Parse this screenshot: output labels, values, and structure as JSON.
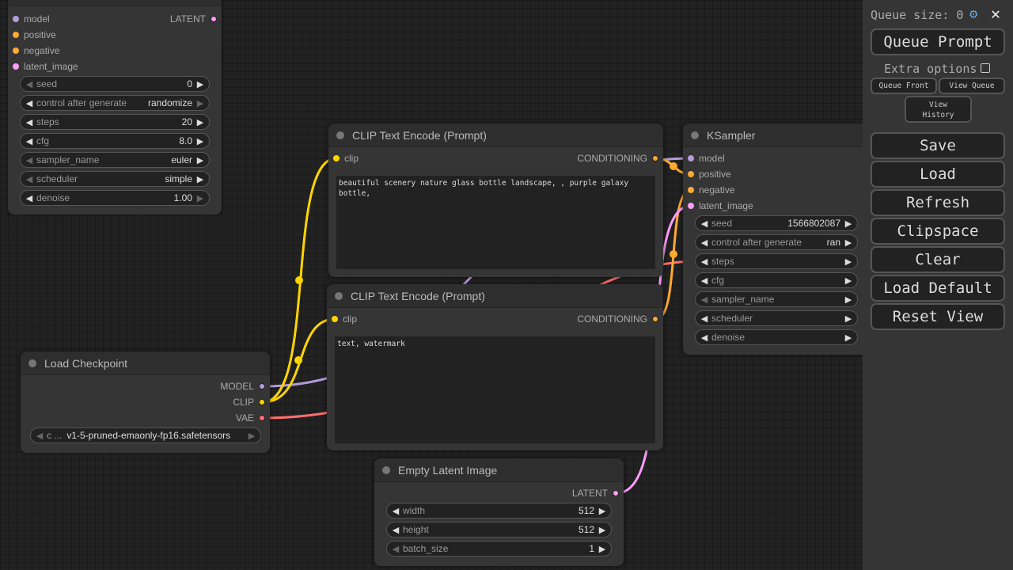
{
  "colors": {
    "model": "#b39ddb",
    "clip": "#ffd500",
    "conditioning": "#ffa931",
    "latent": "#ff9cf9",
    "vae": "#ff6e6e"
  },
  "ksampler_top": {
    "inputs": [
      "model",
      "positive",
      "negative",
      "latent_image"
    ],
    "output": "LATENT",
    "widgets": [
      {
        "label": "seed",
        "value": "0"
      },
      {
        "label": "control after generate",
        "value": "randomize"
      },
      {
        "label": "steps",
        "value": "20"
      },
      {
        "label": "cfg",
        "value": "8.0"
      },
      {
        "label": "sampler_name",
        "value": "euler"
      },
      {
        "label": "scheduler",
        "value": "simple"
      },
      {
        "label": "denoise",
        "value": "1.00"
      }
    ]
  },
  "clip1": {
    "title": "CLIP Text Encode (Prompt)",
    "input": "clip",
    "output": "CONDITIONING",
    "text": "beautiful scenery nature glass bottle landscape, , purple galaxy bottle,"
  },
  "clip2": {
    "title": "CLIP Text Encode (Prompt)",
    "input": "clip",
    "output": "CONDITIONING",
    "text": "text, watermark"
  },
  "checkpoint": {
    "title": "Load Checkpoint",
    "outputs": [
      "MODEL",
      "CLIP",
      "VAE"
    ],
    "widget_label": "c ...",
    "widget_value": "v1-5-pruned-emaonly-fp16.safetensors"
  },
  "latent": {
    "title": "Empty Latent Image",
    "output": "LATENT",
    "widgets": [
      {
        "label": "width",
        "value": "512"
      },
      {
        "label": "height",
        "value": "512"
      },
      {
        "label": "batch_size",
        "value": "1"
      }
    ]
  },
  "ksampler": {
    "title": "KSampler",
    "inputs": [
      "model",
      "positive",
      "negative",
      "latent_image"
    ],
    "widgets": [
      {
        "label": "seed",
        "value": "1566802087"
      },
      {
        "label": "control after generate",
        "value": "ran"
      },
      {
        "label": "steps",
        "value": ""
      },
      {
        "label": "cfg",
        "value": ""
      },
      {
        "label": "sampler_name",
        "value": ""
      },
      {
        "label": "scheduler",
        "value": ""
      },
      {
        "label": "denoise",
        "value": ""
      }
    ]
  },
  "panel": {
    "queue_size": "Queue size: 0",
    "queue_prompt": "Queue Prompt",
    "extra_options": "Extra options",
    "queue_front": "Queue Front",
    "view_queue": "View Queue",
    "view_history_1": "View",
    "view_history_2": "History",
    "buttons": [
      "Save",
      "Load",
      "Refresh",
      "Clipspace",
      "Clear",
      "Load Default",
      "Reset View"
    ]
  }
}
